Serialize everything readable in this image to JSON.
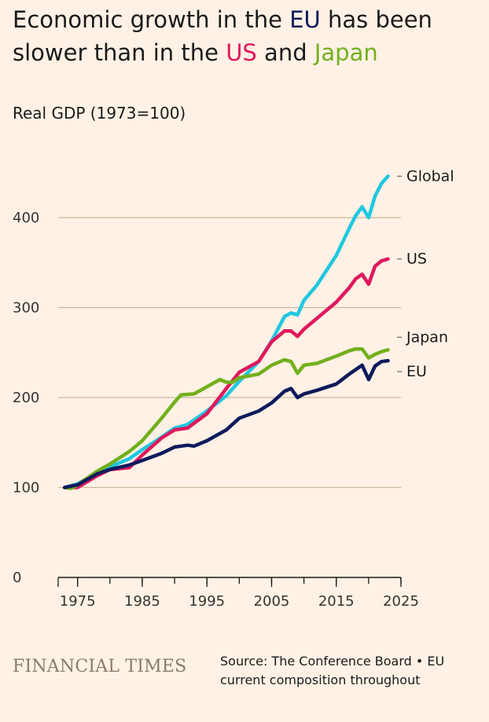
{
  "title": {
    "part1": "Economic growth in the ",
    "eu": "EU",
    "part2": " has been slower than in the ",
    "us": "US",
    "part3": " and ",
    "japan": "Japan"
  },
  "subtitle": "Real GDP (1973=100)",
  "brand": "FINANCIAL TIMES",
  "source": "Source: The Conference Board • EU current composition throughout",
  "chart_data": {
    "type": "line",
    "xlim": [
      1972,
      2025
    ],
    "ylim": [
      0,
      450
    ],
    "xticks": [
      1975,
      1985,
      1995,
      2005,
      2015,
      2025
    ],
    "yticks": [
      0,
      100,
      200,
      300,
      400
    ],
    "grid": true,
    "series": [
      {
        "name": "Global",
        "color": "#1ec8e0",
        "x": [
          1973,
          1975,
          1978,
          1980,
          1983,
          1985,
          1988,
          1990,
          1992,
          1995,
          1998,
          2000,
          2003,
          2005,
          2007,
          2008,
          2009,
          2010,
          2012,
          2015,
          2017,
          2018,
          2019,
          2020,
          2021,
          2022,
          2023
        ],
        "values": [
          100,
          104,
          116,
          123,
          132,
          142,
          156,
          166,
          170,
          185,
          202,
          218,
          240,
          263,
          290,
          294,
          292,
          308,
          325,
          358,
          388,
          402,
          412,
          400,
          424,
          438,
          446
        ]
      },
      {
        "name": "US",
        "color": "#e0185c",
        "x": [
          1973,
          1975,
          1978,
          1980,
          1983,
          1985,
          1988,
          1990,
          1992,
          1995,
          1998,
          2000,
          2003,
          2005,
          2007,
          2008,
          2009,
          2010,
          2012,
          2015,
          2017,
          2018,
          2019,
          2020,
          2021,
          2022,
          2023
        ],
        "values": [
          100,
          100,
          113,
          120,
          122,
          136,
          155,
          164,
          166,
          182,
          210,
          228,
          240,
          262,
          274,
          274,
          268,
          276,
          288,
          306,
          322,
          332,
          337,
          326,
          346,
          352,
          354
        ]
      },
      {
        "name": "Japan",
        "color": "#72b01d",
        "x": [
          1973,
          1974,
          1975,
          1978,
          1980,
          1983,
          1985,
          1988,
          1990,
          1991,
          1993,
          1995,
          1997,
          1998,
          1999,
          2000,
          2003,
          2005,
          2007,
          2008,
          2009,
          2010,
          2012,
          2015,
          2017,
          2018,
          2019,
          2020,
          2021,
          2022,
          2023
        ],
        "values": [
          100,
          99,
          103,
          118,
          126,
          140,
          152,
          177,
          195,
          203,
          204,
          212,
          220,
          217,
          217,
          222,
          226,
          236,
          242,
          240,
          227,
          236,
          238,
          246,
          252,
          254,
          254,
          244,
          248,
          251,
          253
        ]
      },
      {
        "name": "EU",
        "color": "#0d1a5c",
        "x": [
          1973,
          1975,
          1978,
          1980,
          1983,
          1985,
          1988,
          1990,
          1992,
          1993,
          1995,
          1998,
          2000,
          2003,
          2005,
          2007,
          2008,
          2009,
          2010,
          2012,
          2015,
          2017,
          2018,
          2019,
          2020,
          2021,
          2022,
          2023
        ],
        "values": [
          100,
          103,
          115,
          120,
          125,
          130,
          138,
          145,
          147,
          146,
          152,
          164,
          177,
          185,
          194,
          207,
          210,
          200,
          204,
          208,
          215,
          226,
          231,
          236,
          220,
          235,
          240,
          241
        ]
      }
    ]
  }
}
